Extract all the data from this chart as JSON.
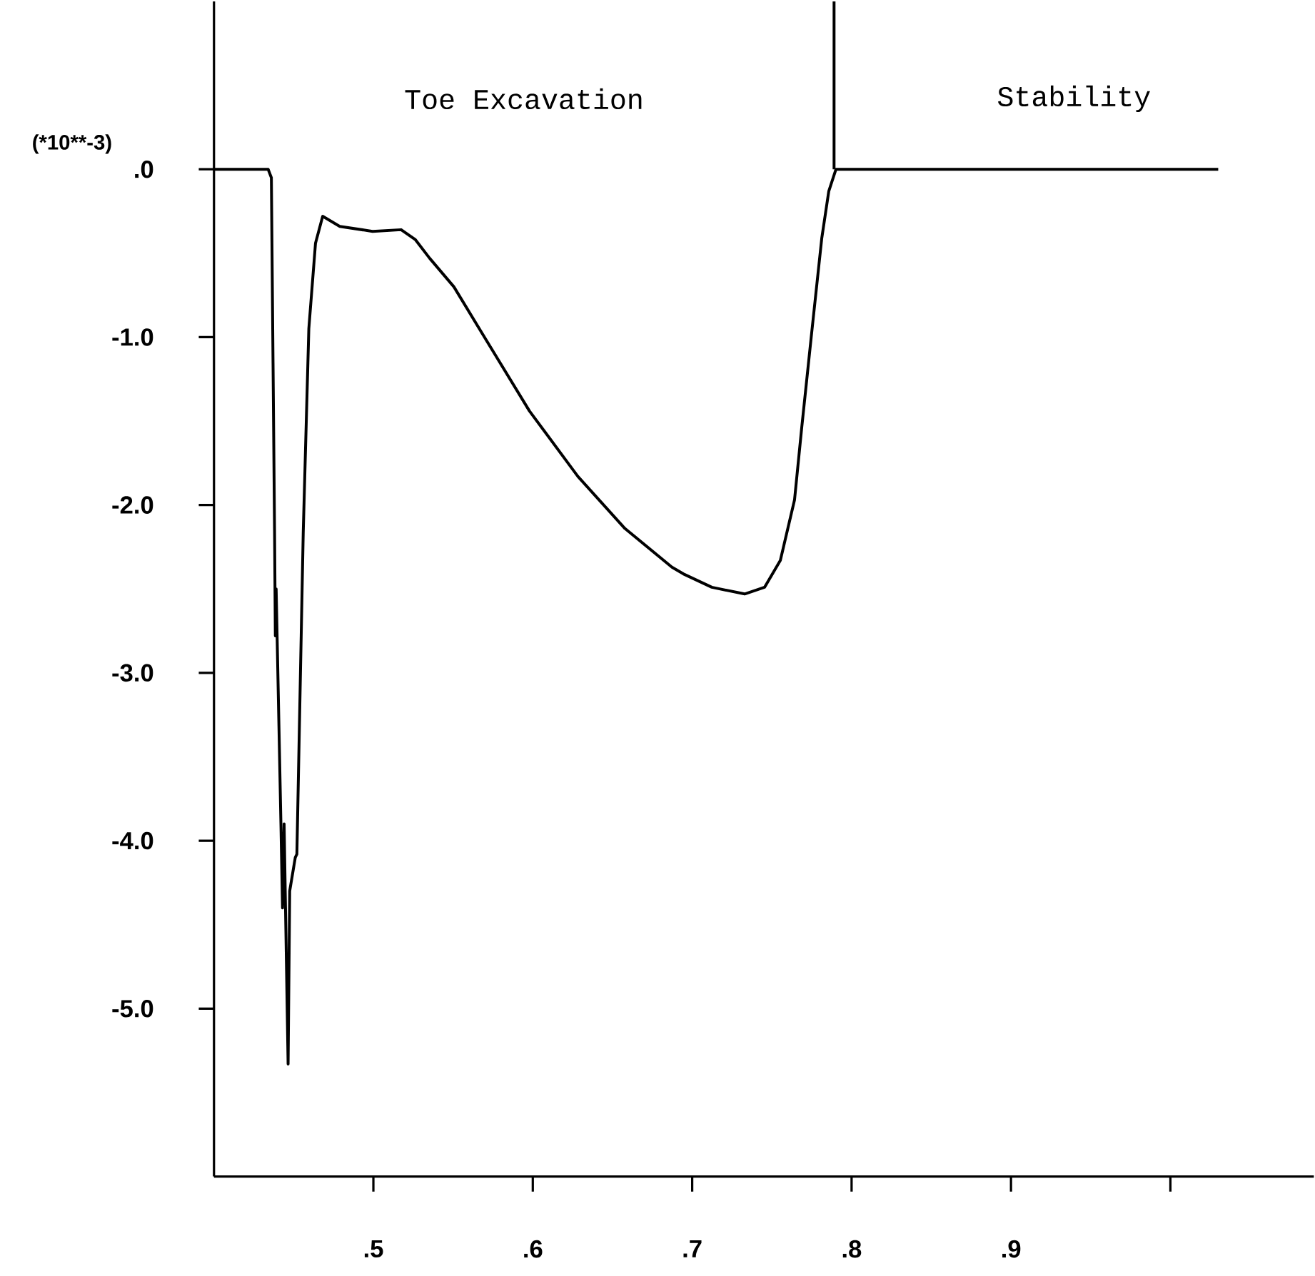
{
  "chart_data": {
    "type": "line",
    "ylabel": "(*10**-3)",
    "annotations": [
      "Toe Excavation",
      "Stability"
    ],
    "ref_lines": [
      {
        "axis": "x",
        "value": 0.789,
        "color": "#000000"
      }
    ],
    "xlim": [
      0.4,
      1.09
    ],
    "ylim": [
      -6,
      1
    ],
    "xticks": [
      {
        "value": 0.5,
        "label": ".5"
      },
      {
        "value": 0.6,
        "label": ".6"
      },
      {
        "value": 0.7,
        "label": ".7"
      },
      {
        "value": 0.8,
        "label": ".8"
      },
      {
        "value": 0.9,
        "label": ".9"
      },
      {
        "value": 1.0,
        "label": null
      }
    ],
    "yticks": [
      {
        "value": 0,
        "label": ".0"
      },
      {
        "value": -1,
        "label": "-1.0"
      },
      {
        "value": -2,
        "label": "-2.0"
      },
      {
        "value": -3,
        "label": "-3.0"
      },
      {
        "value": -4,
        "label": "-4.0"
      },
      {
        "value": -5,
        "label": "-5.0"
      }
    ],
    "grid": false,
    "series": [
      {
        "color": "#000000",
        "x": [
          0.4,
          0.434,
          0.436,
          0.438,
          0.4385,
          0.439,
          0.442,
          0.443,
          0.444,
          0.4465,
          0.4475,
          0.451,
          0.452,
          0.456,
          0.4595,
          0.4637,
          0.4682,
          0.4789,
          0.4995,
          0.5174,
          0.5264,
          0.5353,
          0.5505,
          0.5684,
          0.5979,
          0.6283,
          0.6578,
          0.6873,
          0.6944,
          0.7123,
          0.7329,
          0.7454,
          0.7553,
          0.7642,
          0.7687,
          0.775,
          0.7813,
          0.7857,
          0.7902,
          1.03
        ],
        "values": [
          0,
          0,
          -0.05,
          -2.15,
          -2.78,
          -2.5,
          -3.9,
          -4.4,
          -3.9,
          -5.33,
          -4.3,
          -4.1,
          -4.08,
          -2.16,
          -0.95,
          -0.44,
          -0.28,
          -0.34,
          -0.37,
          -0.36,
          -0.42,
          -0.53,
          -0.7,
          -0.98,
          -1.44,
          -1.83,
          -2.14,
          -2.37,
          -2.41,
          -2.49,
          -2.53,
          -2.49,
          -2.33,
          -1.97,
          -1.54,
          -0.97,
          -0.41,
          -0.13,
          0,
          0
        ]
      }
    ]
  }
}
